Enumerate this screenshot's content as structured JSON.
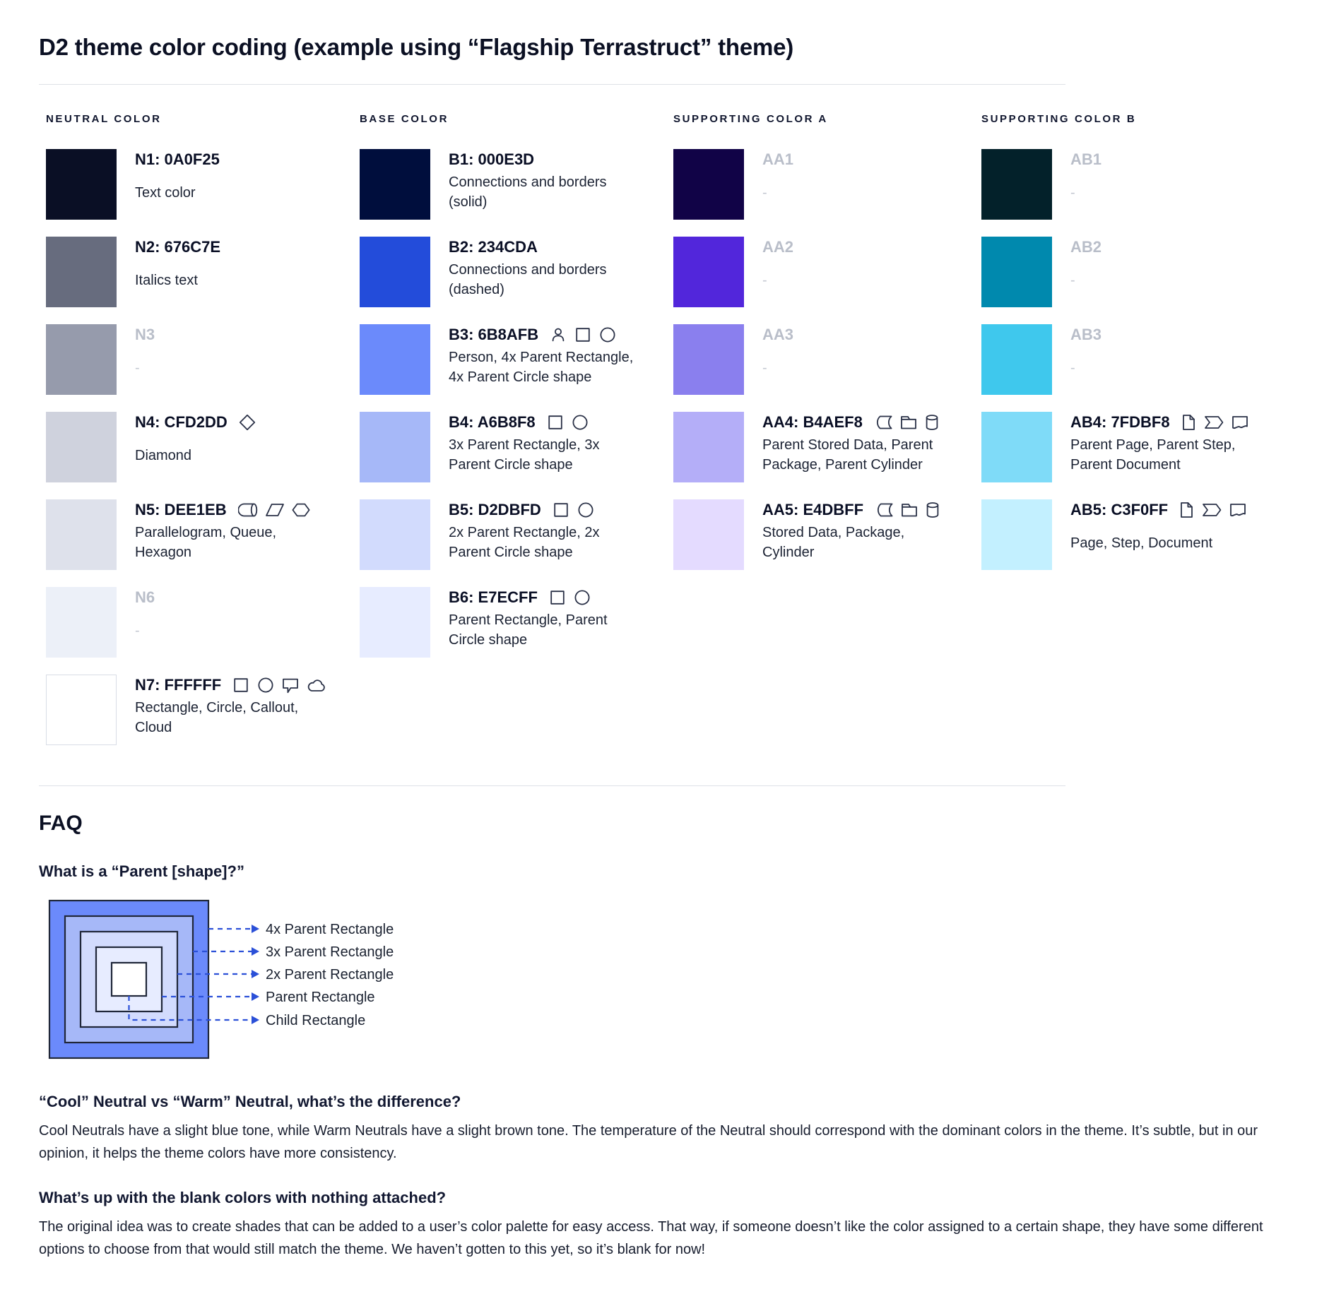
{
  "page": {
    "title": "D2 theme color coding (example using “Flagship Terrastruct” theme)"
  },
  "colors": {
    "text_dark": "#0A0F25",
    "muted_label": "#B9BEC9",
    "arrow_blue": "#2B50D8",
    "divider": "#DEE1E7",
    "icon_stroke": "#2A3147"
  },
  "columns": [
    {
      "header": "NEUTRAL COLOR",
      "swatches": [
        {
          "hex": "#0A0F25",
          "label": "N1: 0A0F25",
          "desc": "Text color",
          "icons": [],
          "blank": false,
          "bordered": false
        },
        {
          "hex": "#676C7E",
          "label": "N2: 676C7E",
          "desc": "Italics text",
          "icons": [],
          "blank": false,
          "bordered": false
        },
        {
          "hex": "#969BAC",
          "label": "N3",
          "desc": "-",
          "icons": [],
          "blank": true,
          "bordered": false
        },
        {
          "hex": "#CFD2DD",
          "label": "N4: CFD2DD",
          "desc": "Diamond",
          "icons": [
            "diamond"
          ],
          "blank": false,
          "bordered": false
        },
        {
          "hex": "#DEE1EB",
          "label": "N5: DEE1EB",
          "desc": "Parallelogram, Queue, Hexagon",
          "icons": [
            "queue",
            "parallelogram",
            "hexagon"
          ],
          "blank": false,
          "bordered": false
        },
        {
          "hex": "#ECF0F8",
          "label": "N6",
          "desc": "-",
          "icons": [],
          "blank": true,
          "bordered": false
        },
        {
          "hex": "#FFFFFF",
          "label": "N7: FFFFFF",
          "desc": "Rectangle, Circle, Callout, Cloud",
          "icons": [
            "rectangle",
            "circle",
            "callout",
            "cloud"
          ],
          "blank": false,
          "bordered": true
        }
      ]
    },
    {
      "header": "BASE COLOR",
      "swatches": [
        {
          "hex": "#000E3D",
          "label": "B1: 000E3D",
          "desc": "Connections and borders (solid)",
          "icons": [],
          "blank": false,
          "bordered": false
        },
        {
          "hex": "#234CDA",
          "label": "B2: 234CDA",
          "desc": "Connections and borders (dashed)",
          "icons": [],
          "blank": false,
          "bordered": false
        },
        {
          "hex": "#6B8AFB",
          "label": "B3: 6B8AFB",
          "desc": "Person, 4x Parent Rectangle, 4x Parent Circle shape",
          "icons": [
            "person",
            "rectangle",
            "circle"
          ],
          "blank": false,
          "bordered": false
        },
        {
          "hex": "#A6B8F8",
          "label": "B4: A6B8F8",
          "desc": "3x Parent Rectangle, 3x Parent Circle shape",
          "icons": [
            "rectangle",
            "circle"
          ],
          "blank": false,
          "bordered": false
        },
        {
          "hex": "#D2DBFD",
          "label": "B5: D2DBFD",
          "desc": "2x Parent Rectangle, 2x Parent Circle shape",
          "icons": [
            "rectangle",
            "circle"
          ],
          "blank": false,
          "bordered": false
        },
        {
          "hex": "#E7ECFF",
          "label": "B6: E7ECFF",
          "desc": "Parent Rectangle, Parent Circle shape",
          "icons": [
            "rectangle",
            "circle"
          ],
          "blank": false,
          "bordered": false
        }
      ]
    },
    {
      "header": "SUPPORTING COLOR A",
      "swatches": [
        {
          "hex": "#110347",
          "label": "AA1",
          "desc": "-",
          "icons": [],
          "blank": true,
          "bordered": false
        },
        {
          "hex": "#5226DB",
          "label": "AA2",
          "desc": "-",
          "icons": [],
          "blank": true,
          "bordered": false
        },
        {
          "hex": "#8A7FEE",
          "label": "AA3",
          "desc": "-",
          "icons": [],
          "blank": true,
          "bordered": false
        },
        {
          "hex": "#B4AEF8",
          "label": "AA4: B4AEF8",
          "desc": "Parent Stored Data, Parent Package,  Parent Cylinder",
          "icons": [
            "stored-data",
            "package",
            "cylinder"
          ],
          "blank": false,
          "bordered": false
        },
        {
          "hex": "#E4DBFF",
          "label": "AA5: E4DBFF",
          "desc": "Stored Data, Package, Cylinder",
          "icons": [
            "stored-data",
            "package",
            "cylinder"
          ],
          "blank": false,
          "bordered": false
        }
      ]
    },
    {
      "header": "SUPPORTING COLOR B",
      "swatches": [
        {
          "hex": "#03212A",
          "label": "AB1",
          "desc": "-",
          "icons": [],
          "blank": true,
          "bordered": false
        },
        {
          "hex": "#0089AE",
          "label": "AB2",
          "desc": "-",
          "icons": [],
          "blank": true,
          "bordered": false
        },
        {
          "hex": "#3FC8ED",
          "label": "AB3",
          "desc": "-",
          "icons": [],
          "blank": true,
          "bordered": false
        },
        {
          "hex": "#7FDBF8",
          "label": "AB4: 7FDBF8",
          "desc": "Parent Page, Parent Step, Parent Document",
          "icons": [
            "page",
            "step",
            "document"
          ],
          "blank": false,
          "bordered": false
        },
        {
          "hex": "#C3F0FF",
          "label": "AB5: C3F0FF",
          "desc": "Page, Step, Document",
          "icons": [
            "page",
            "step",
            "document"
          ],
          "blank": false,
          "bordered": false
        }
      ]
    }
  ],
  "faq": {
    "heading": "FAQ",
    "q1": {
      "question": "What is a “Parent [shape]?”",
      "diagram_colors": [
        "#6B8AFB",
        "#A6B8F8",
        "#D2DBFD",
        "#E7ECFF",
        "#FFFFFF"
      ],
      "diagram_labels": [
        "4x Parent Rectangle",
        "3x Parent Rectangle",
        "2x Parent Rectangle",
        "Parent Rectangle",
        "Child Rectangle"
      ]
    },
    "q2": {
      "question": "“Cool” Neutral vs “Warm” Neutral, what’s the difference?",
      "answer": "Cool Neutrals have a slight blue tone, while Warm Neutrals have a slight brown tone. The temperature of the Neutral should correspond with the dominant colors in the theme. It’s subtle, but in our opinion, it helps the theme colors have more consistency."
    },
    "q3": {
      "question": "What’s up with the blank colors with nothing attached?",
      "answer": "The original idea was to create shades that can be added to a user’s color palette for easy access. That way, if someone doesn’t like the color assigned to a certain shape, they have some different options to choose from that would still match the theme. We haven’t gotten to this yet, so it’s blank for now!"
    }
  }
}
